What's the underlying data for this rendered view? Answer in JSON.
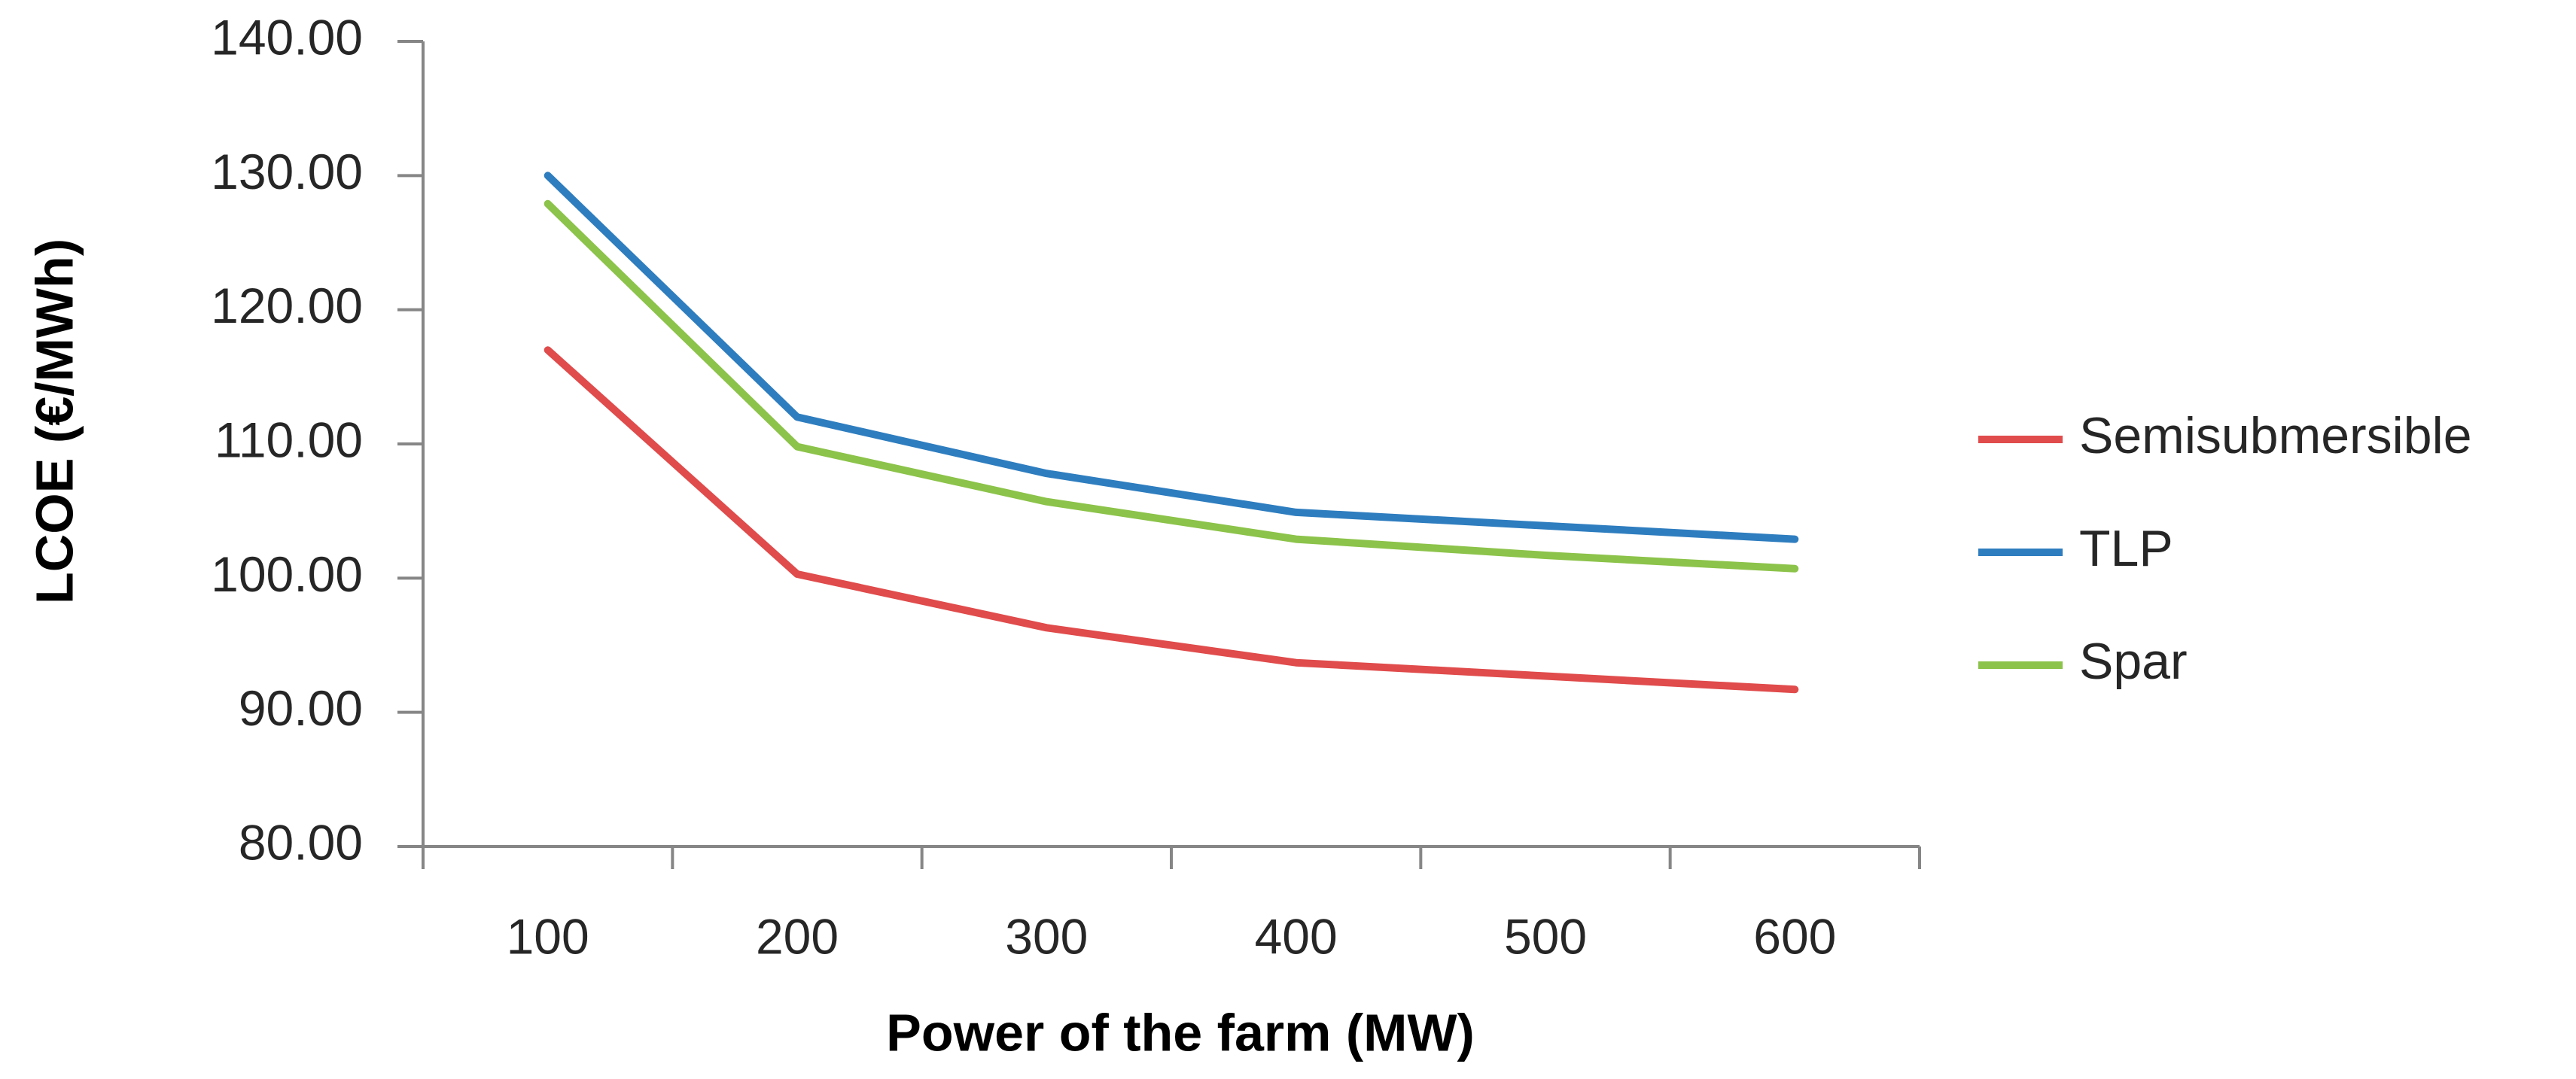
{
  "chart_data": {
    "type": "line",
    "title": "",
    "xlabel": "Power of the farm (MW)",
    "ylabel": "LCOE (€/MWh)",
    "categories": [
      "100",
      "200",
      "300",
      "400",
      "500",
      "600"
    ],
    "ylim": [
      80,
      140
    ],
    "yticks": [
      "80.00",
      "90.00",
      "100.00",
      "110.00",
      "120.00",
      "130.00",
      "140.00"
    ],
    "grid": false,
    "legend_position": "right",
    "series": [
      {
        "name": "Semisubmersible",
        "color": "#e04b4b",
        "values": [
          117.0,
          100.3,
          96.3,
          93.7,
          92.7,
          91.7
        ]
      },
      {
        "name": "TLP",
        "color": "#2e7dbf",
        "values": [
          130.0,
          112.0,
          107.8,
          104.9,
          103.9,
          102.9
        ]
      },
      {
        "name": "Spar",
        "color": "#8cc34a",
        "values": [
          127.9,
          109.8,
          105.7,
          102.9,
          101.7,
          100.7
        ]
      }
    ]
  }
}
